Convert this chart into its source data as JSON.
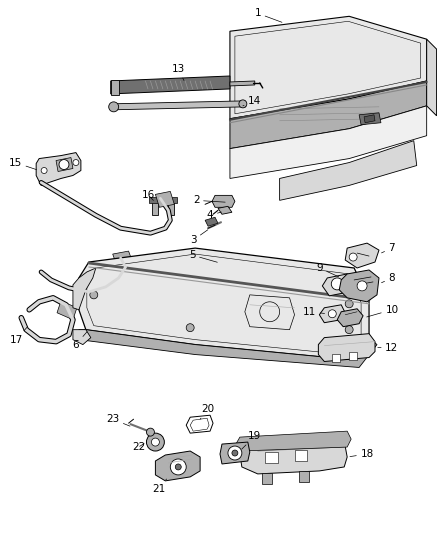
{
  "bg_color": "#ffffff",
  "fig_width": 4.38,
  "fig_height": 5.33,
  "dpi": 100,
  "line_color": "#000000",
  "label_fontsize": 7.5,
  "label_color": "#000000",
  "gray_light": "#d8d8d8",
  "gray_med": "#b0b0b0",
  "gray_dark": "#707070",
  "gray_fill": "#e8e8e8"
}
